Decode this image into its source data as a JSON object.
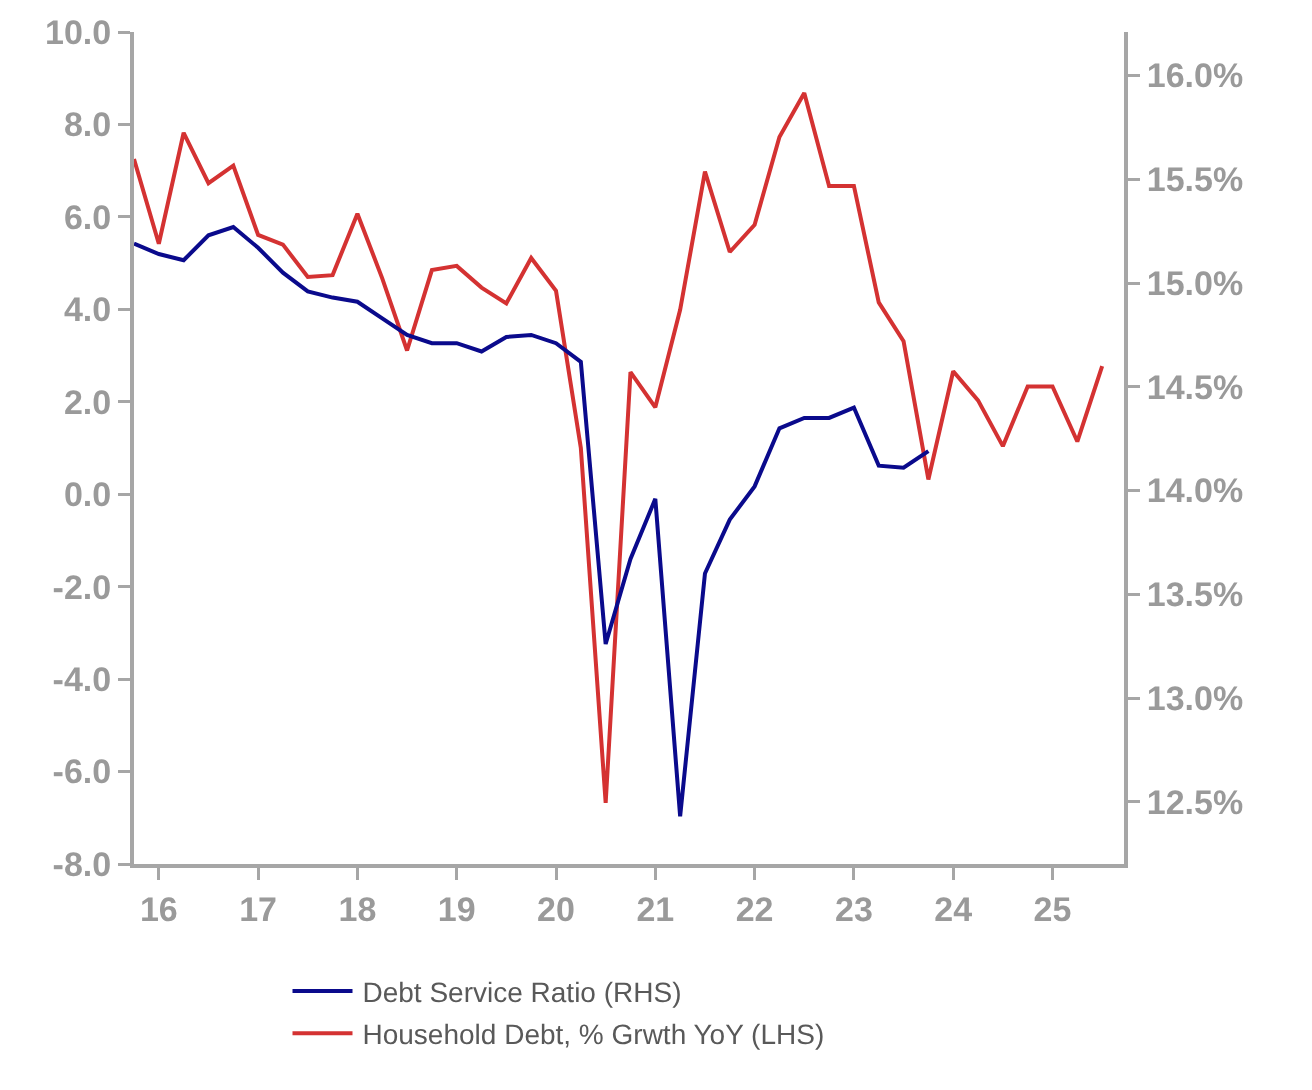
{
  "chart_data": {
    "type": "line",
    "xlim": [
      15.75,
      25.72
    ],
    "xticks": [
      {
        "value": 16,
        "label": "16"
      },
      {
        "value": 17,
        "label": "17"
      },
      {
        "value": 18,
        "label": "18"
      },
      {
        "value": 19,
        "label": "19"
      },
      {
        "value": 20,
        "label": "20"
      },
      {
        "value": 21,
        "label": "21"
      },
      {
        "value": 22,
        "label": "22"
      },
      {
        "value": 23,
        "label": "23"
      },
      {
        "value": 24,
        "label": "24"
      },
      {
        "value": 25,
        "label": "25"
      }
    ],
    "ylim": [
      -8,
      10
    ],
    "yticks": [
      {
        "value": -8,
        "label": "-8.0"
      },
      {
        "value": -6,
        "label": "-6.0"
      },
      {
        "value": -4,
        "label": "-4.0"
      },
      {
        "value": -2,
        "label": "-2.0"
      },
      {
        "value": 0,
        "label": "0.0"
      },
      {
        "value": 2,
        "label": "2.0"
      },
      {
        "value": 4,
        "label": "4.0"
      },
      {
        "value": 6,
        "label": "6.0"
      },
      {
        "value": 8,
        "label": "8.0"
      },
      {
        "value": 10,
        "label": "10.0"
      }
    ],
    "y2lim": [
      12.2,
      16.21
    ],
    "y2ticks": [
      {
        "value": 12.5,
        "label": "12.5%"
      },
      {
        "value": 13,
        "label": "13.0%"
      },
      {
        "value": 13.5,
        "label": "13.5%"
      },
      {
        "value": 14,
        "label": "14.0%"
      },
      {
        "value": 14.5,
        "label": "14.5%"
      },
      {
        "value": 15,
        "label": "15.0%"
      },
      {
        "value": 15.5,
        "label": "15.5%"
      },
      {
        "value": 16,
        "label": "16.0%"
      }
    ],
    "grid": false,
    "legend": "bottom",
    "marker": "none",
    "line_style": "solid",
    "series": [
      {
        "name": "Debt Service Ratio (RHS)",
        "color": "#0a0a8c",
        "axis": "y2",
        "x": [
          15.75,
          16,
          16.25,
          16.5,
          16.75,
          17,
          17.25,
          17.5,
          17.75,
          18,
          18.25,
          18.5,
          18.75,
          19,
          19.25,
          19.5,
          19.75,
          20,
          20.25,
          20.5,
          20.75,
          21,
          21.25,
          21.5,
          21.75,
          22,
          22.25,
          22.5,
          22.75,
          23,
          23.25,
          23.5,
          23.75
        ],
        "values": [
          15.19,
          15.14,
          15.11,
          15.23,
          15.27,
          15.17,
          15.05,
          14.96,
          14.93,
          14.91,
          14.83,
          14.75,
          14.71,
          14.71,
          14.67,
          14.74,
          14.75,
          14.71,
          14.62,
          13.26,
          13.67,
          13.96,
          12.43,
          13.6,
          13.86,
          14.02,
          14.3,
          14.35,
          14.35,
          14.4,
          14.12,
          14.11,
          14.19
        ]
      },
      {
        "name": "Household Debt, % Grwth YoY (LHS)",
        "color": "#d43232",
        "x": [
          15.75,
          16,
          16.25,
          16.5,
          16.75,
          17,
          17.25,
          17.5,
          17.75,
          18,
          18.25,
          18.5,
          18.75,
          19,
          19.25,
          19.5,
          19.75,
          20,
          20.25,
          20.5,
          20.75,
          21,
          21.25,
          21.5,
          21.75,
          22,
          22.25,
          22.5,
          22.75,
          23,
          23.25,
          23.5,
          23.75,
          24,
          24.25,
          24.5,
          24.75,
          25,
          25.25,
          25.5
        ],
        "values": [
          7.25,
          5.42,
          7.82,
          6.73,
          7.11,
          5.61,
          5.4,
          4.7,
          4.74,
          6.07,
          4.67,
          3.11,
          4.85,
          4.94,
          4.47,
          4.13,
          5.11,
          4.4,
          1.0,
          -6.68,
          2.64,
          1.88,
          3.99,
          6.98,
          5.24,
          5.83,
          7.73,
          8.68,
          6.67,
          6.67,
          4.15,
          3.31,
          0.32,
          2.66,
          2.03,
          1.04,
          2.33,
          2.33,
          1.14,
          2.77
        ]
      }
    ]
  }
}
